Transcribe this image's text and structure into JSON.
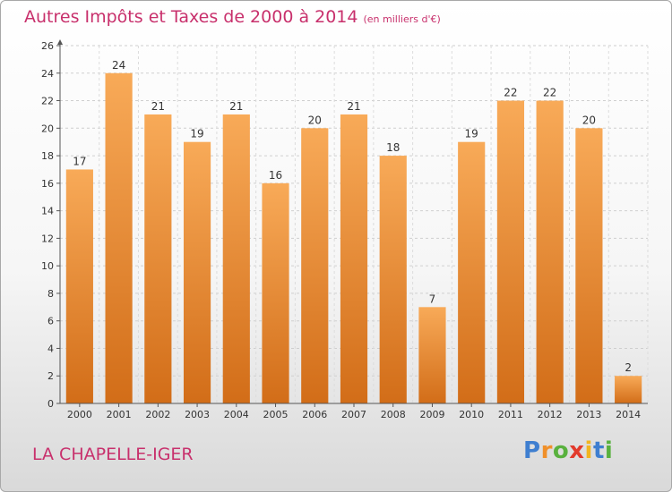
{
  "title": "Autres Impôts et Taxes de 2000 à 2014",
  "title_unit": "(en milliers d'€)",
  "commune": "LA CHAPELLE-IGER",
  "brand": {
    "letters": [
      "P",
      "r",
      "o",
      "x",
      "i",
      "t",
      "i"
    ],
    "colors": [
      "#3f7fd0",
      "#f0902a",
      "#59b13e",
      "#e23a2c",
      "#f2b51f",
      "#3f7fd0",
      "#59b13e"
    ]
  },
  "colors": {
    "bar_light": "#f8aa58",
    "bar_dark": "#d26d18",
    "axis": "#555555",
    "text": "#333333"
  },
  "chart_data": {
    "type": "bar",
    "categories": [
      "2000",
      "2001",
      "2002",
      "2003",
      "2004",
      "2005",
      "2006",
      "2007",
      "2008",
      "2009",
      "2010",
      "2011",
      "2012",
      "2013",
      "2014"
    ],
    "values": [
      17,
      24,
      21,
      19,
      21,
      16,
      20,
      21,
      18,
      7,
      19,
      22,
      22,
      20,
      2
    ],
    "ylim": [
      0,
      26
    ],
    "yticks": [
      0,
      2,
      4,
      6,
      8,
      10,
      12,
      14,
      16,
      18,
      20,
      22,
      24,
      26
    ],
    "grid": true
  }
}
